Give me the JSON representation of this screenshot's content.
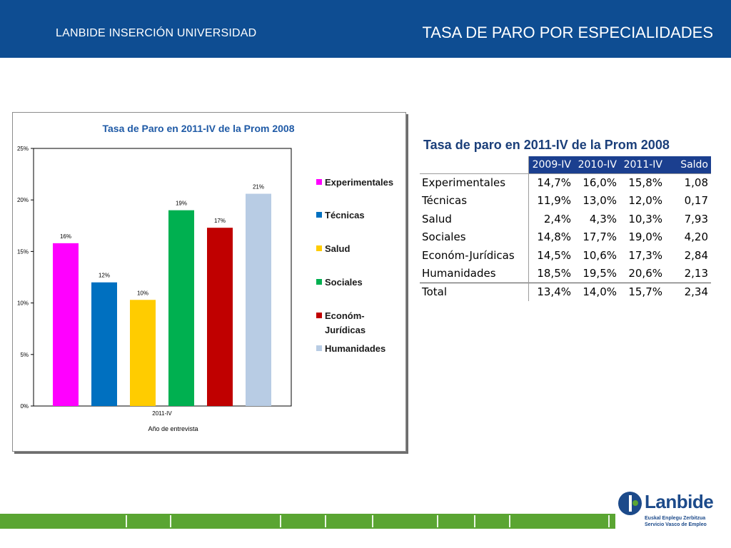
{
  "header": {
    "left_title": "LANBIDE INSERCIÓN UNIVERSIDAD",
    "right_title": "TASA DE PARO POR ESPECIALIDADES"
  },
  "chart_data": {
    "type": "bar",
    "title": "Tasa de Paro en 2011-IV de la Prom 2008",
    "categories": [
      "2011-IV"
    ],
    "xlabel": "Año de entrevista",
    "ylabel": "",
    "ylim": [
      0,
      25
    ],
    "yticks": [
      "0%",
      "5%",
      "10%",
      "15%",
      "20%",
      "25%"
    ],
    "legend_position": "right",
    "grid": false,
    "series": [
      {
        "name": "Experimentales",
        "values": [
          15.8
        ],
        "label": "16%",
        "color": "#ff00ff"
      },
      {
        "name": "Técnicas",
        "values": [
          12.0
        ],
        "label": "12%",
        "color": "#0070c0"
      },
      {
        "name": "Salud",
        "values": [
          10.3
        ],
        "label": "10%",
        "color": "#ffcc00"
      },
      {
        "name": "Sociales",
        "values": [
          19.0
        ],
        "label": "19%",
        "color": "#00b050"
      },
      {
        "name": "Económ-Jurídicas",
        "values": [
          17.3
        ],
        "label": "17%",
        "color": "#c00000"
      },
      {
        "name": "Humanidades",
        "values": [
          20.6
        ],
        "label": "21%",
        "color": "#b8cce4"
      }
    ],
    "legend_lines": [
      [
        "Experimentales"
      ],
      [
        "Técnicas"
      ],
      [
        "Salud"
      ],
      [
        "Sociales"
      ],
      [
        "Económ-",
        "Jurídicas"
      ],
      [
        "Humanidades"
      ]
    ]
  },
  "table": {
    "title": "Tasa de paro en 2011-IV de la Prom 2008",
    "headers": [
      "2009-IV",
      "2010-IV",
      "2011-IV",
      "Saldo"
    ],
    "rows": [
      [
        "Experimentales",
        "14,7%",
        "16,0%",
        "15,8%",
        "1,08"
      ],
      [
        "Técnicas",
        "11,9%",
        "13,0%",
        "12,0%",
        "0,17"
      ],
      [
        "Salud",
        "2,4%",
        "4,3%",
        "10,3%",
        "7,93"
      ],
      [
        "Sociales",
        "14,8%",
        "17,7%",
        "19,0%",
        "4,20"
      ],
      [
        "Económ-Jurídicas",
        "14,5%",
        "10,6%",
        "17,3%",
        "2,84"
      ],
      [
        "Humanidades",
        "18,5%",
        "19,5%",
        "20,6%",
        "2,13"
      ]
    ],
    "total": [
      "Total",
      "13,4%",
      "14,0%",
      "15,7%",
      "2,34"
    ]
  },
  "logo": {
    "name": "Lanbide",
    "line1": "Euskal Enplegu Zerbitzua",
    "line2": "Servicio Vasco de Empleo",
    "colors": {
      "blue": "#1c4a8a",
      "green": "#5aa532"
    }
  }
}
